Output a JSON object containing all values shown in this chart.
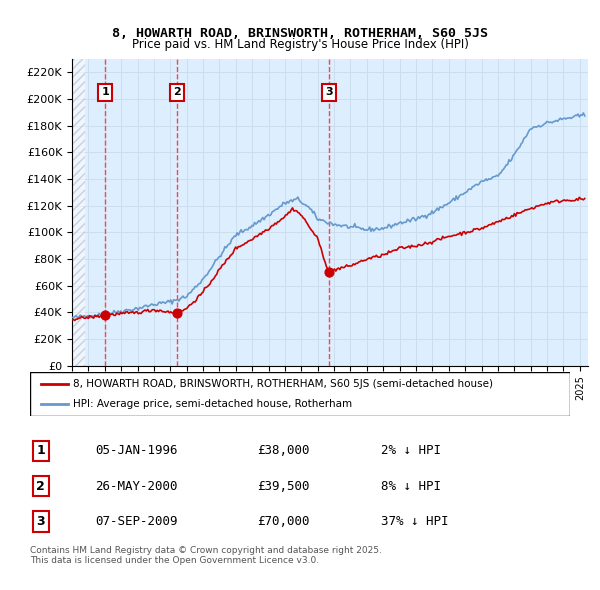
{
  "title1": "8, HOWARTH ROAD, BRINSWORTH, ROTHERHAM, S60 5JS",
  "title2": "Price paid vs. HM Land Registry's House Price Index (HPI)",
  "ylabel_ticks": [
    "£0",
    "£20K",
    "£40K",
    "£60K",
    "£80K",
    "£100K",
    "£120K",
    "£140K",
    "£160K",
    "£180K",
    "£200K",
    "£220K"
  ],
  "ytick_vals": [
    0,
    20000,
    40000,
    60000,
    80000,
    100000,
    120000,
    140000,
    160000,
    180000,
    200000,
    220000
  ],
  "ylim": [
    0,
    230000
  ],
  "xlim_start": 1994.0,
  "xlim_end": 2025.5,
  "legend_line1": "8, HOWARTH ROAD, BRINSWORTH, ROTHERHAM, S60 5JS (semi-detached house)",
  "legend_line2": "HPI: Average price, semi-detached house, Rotherham",
  "sale_dates": [
    1996.02,
    2000.4,
    2009.68
  ],
  "sale_prices": [
    38000,
    39500,
    70000
  ],
  "sale_labels": [
    "1",
    "2",
    "3"
  ],
  "annotation_rows": [
    [
      "1",
      "05-JAN-1996",
      "£38,000",
      "2% ↓ HPI"
    ],
    [
      "2",
      "26-MAY-2000",
      "£39,500",
      "8% ↓ HPI"
    ],
    [
      "3",
      "07-SEP-2009",
      "£70,000",
      "37% ↓ HPI"
    ]
  ],
  "footnote": "Contains HM Land Registry data © Crown copyright and database right 2025.\nThis data is licensed under the Open Government Licence v3.0.",
  "hpi_color": "#6699cc",
  "price_color": "#cc0000",
  "vline_color": "#ff4444",
  "bg_hatch_color": "#cccccc",
  "grid_color": "#ccddee",
  "box_fill": "#ddeeff"
}
